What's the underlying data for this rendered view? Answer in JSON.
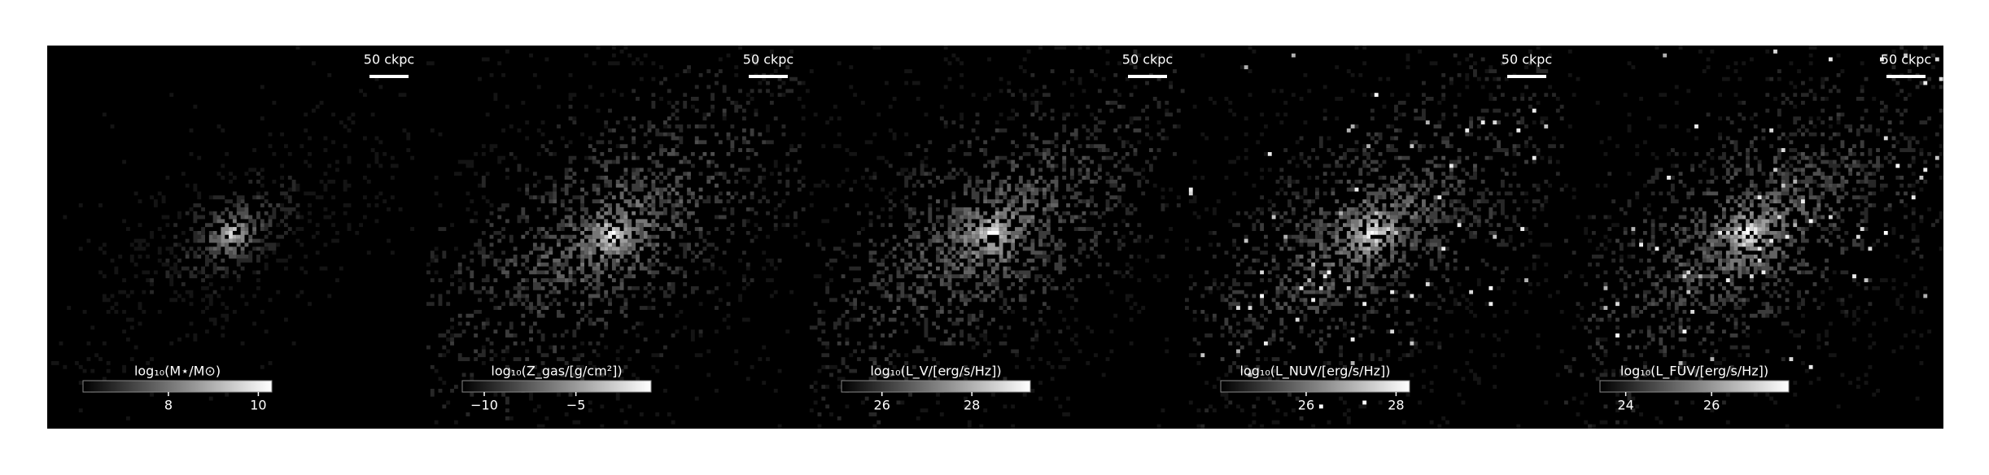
{
  "panels": [
    {
      "scale_label": "50 ckpc",
      "colorbar": {
        "label": "log₁₀(M⋆/M⊙)",
        "clim": [
          6.1,
          10.3
        ],
        "ticks": [
          8,
          10
        ]
      }
    },
    {
      "scale_label": "50 ckpc",
      "colorbar": {
        "label": "log₁₀(Z_gas/[g/cm²])",
        "clim": [
          -11.2,
          -0.9
        ],
        "ticks": [
          {
            "value": -10,
            "label": "−10"
          },
          {
            "value": -5,
            "label": "−5"
          }
        ]
      }
    },
    {
      "scale_label": "50 ckpc",
      "colorbar": {
        "label": "log₁₀(L_V/[erg/s/Hz])",
        "clim": [
          25.1,
          29.3
        ],
        "ticks": [
          26,
          28
        ]
      }
    },
    {
      "scale_label": "50 ckpc",
      "colorbar": {
        "label": "log₁₀(L_NUV/[erg/s/Hz])",
        "clim": [
          24.1,
          28.3
        ],
        "ticks": [
          26,
          28
        ]
      }
    },
    {
      "scale_label": "50 ckpc",
      "colorbar": {
        "label": "log₁₀(L_FUV/[erg/s/Hz])",
        "clim": [
          23.4,
          27.8
        ],
        "ticks": [
          24,
          26
        ]
      }
    }
  ]
}
